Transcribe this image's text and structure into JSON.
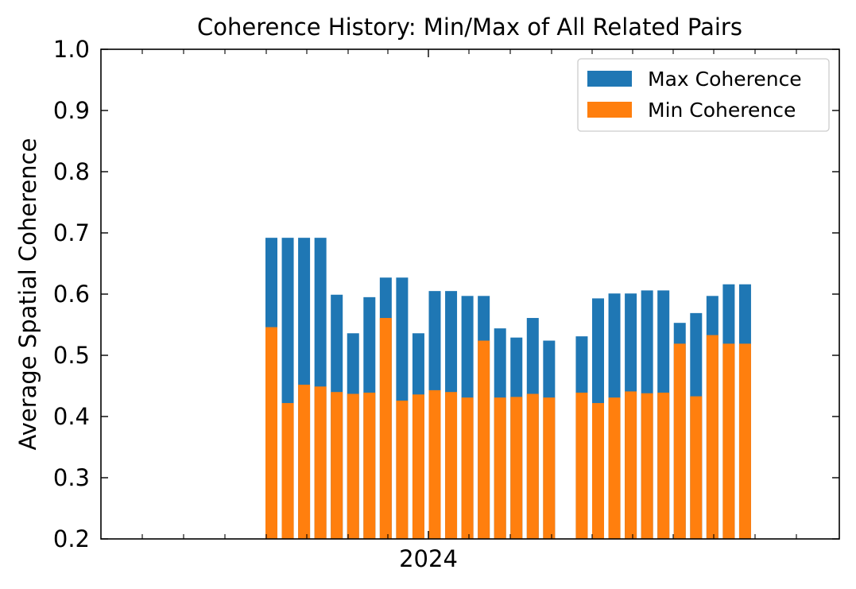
{
  "chart_data": {
    "type": "bar",
    "title": "Coherence History: Min/Max of All Related Pairs",
    "xlabel": "",
    "ylabel": "Average Spatial Coherence",
    "ylim": [
      0.2,
      1.0
    ],
    "yticks": [
      "0.2",
      "0.3",
      "0.4",
      "0.5",
      "0.6",
      "0.7",
      "0.8",
      "0.9",
      "1.0"
    ],
    "xtick_labels": [
      "2024"
    ],
    "legend_position": "upper right",
    "grid": false,
    "series": [
      {
        "name": "Max Coherence",
        "color": "#1f77b4",
        "values": [
          0.692,
          0.692,
          0.692,
          0.692,
          0.599,
          0.536,
          0.595,
          0.627,
          0.627,
          0.536,
          0.605,
          0.605,
          0.597,
          0.597,
          0.544,
          0.529,
          0.561,
          0.524,
          0.531,
          0.593,
          0.601,
          0.601,
          0.606,
          0.606,
          0.553,
          0.569,
          0.597,
          0.616,
          0.616
        ]
      },
      {
        "name": "Min Coherence",
        "color": "#ff7f0e",
        "values": [
          0.546,
          0.422,
          0.452,
          0.449,
          0.44,
          0.437,
          0.439,
          0.561,
          0.426,
          0.436,
          0.443,
          0.44,
          0.431,
          0.524,
          0.431,
          0.432,
          0.437,
          0.431,
          0.439,
          0.422,
          0.431,
          0.441,
          0.438,
          0.439,
          0.519,
          0.433,
          0.533,
          0.519,
          0.519
        ]
      }
    ]
  }
}
